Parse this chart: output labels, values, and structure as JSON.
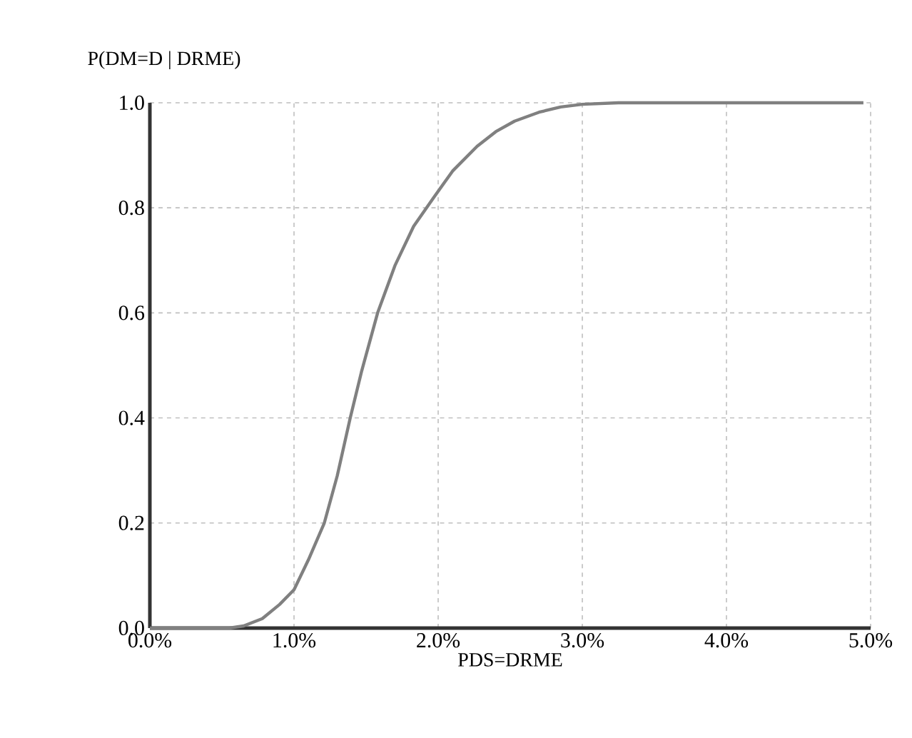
{
  "chart_data": {
    "type": "line",
    "xlabel": "PDS=DRME",
    "ylabel": "P(DM=D | DRME)",
    "x": [
      0,
      0.3,
      0.55,
      0.65,
      0.78,
      0.9,
      1.0,
      1.1,
      1.21,
      1.3,
      1.39,
      1.47,
      1.58,
      1.7,
      1.83,
      1.97,
      2.1,
      2.27,
      2.4,
      2.53,
      2.7,
      2.85,
      3.0,
      3.25,
      4.0,
      4.95
    ],
    "series": [
      {
        "color": "#808080",
        "values": [
          0,
          0,
          0,
          0.004,
          0.018,
          0.045,
          0.073,
          0.13,
          0.2,
          0.29,
          0.4,
          0.49,
          0.6,
          0.69,
          0.765,
          0.82,
          0.87,
          0.917,
          0.945,
          0.965,
          0.982,
          0.992,
          0.997,
          1.0,
          1.0,
          1.0
        ]
      }
    ],
    "xlim": [
      0,
      5
    ],
    "ylim": [
      0,
      1
    ],
    "xticks": [
      {
        "value": 0,
        "label": "0.0%"
      },
      {
        "value": 1,
        "label": "1.0%"
      },
      {
        "value": 2,
        "label": "2.0%"
      },
      {
        "value": 3,
        "label": "3.0%"
      },
      {
        "value": 4,
        "label": "4.0%"
      },
      {
        "value": 5,
        "label": "5.0%"
      }
    ],
    "yticks": [
      {
        "value": 0,
        "label": "0.0"
      },
      {
        "value": 0.2,
        "label": "0.2"
      },
      {
        "value": 0.4,
        "label": "0.4"
      },
      {
        "value": 0.6,
        "label": "0.6"
      },
      {
        "value": 0.8,
        "label": "0.8"
      },
      {
        "value": 1,
        "label": "1.0"
      }
    ],
    "grid": true,
    "marker": "none",
    "line_style": "solid"
  }
}
